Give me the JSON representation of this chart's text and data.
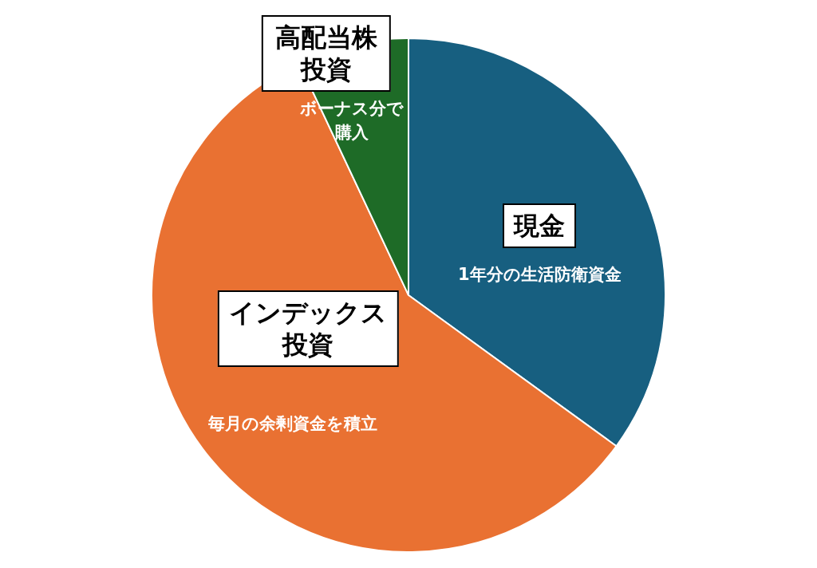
{
  "chart_data": {
    "type": "pie",
    "categories": [
      "現金",
      "インデックス投資",
      "高配当株投資"
    ],
    "values": [
      35,
      58,
      7
    ],
    "colors": [
      "#175f80",
      "#e97132",
      "#1e6b27"
    ],
    "annotations": [
      "1年分の生活防衛資金",
      "毎月の余剰資金を積立",
      "ボーナス分で購入"
    ]
  }
}
